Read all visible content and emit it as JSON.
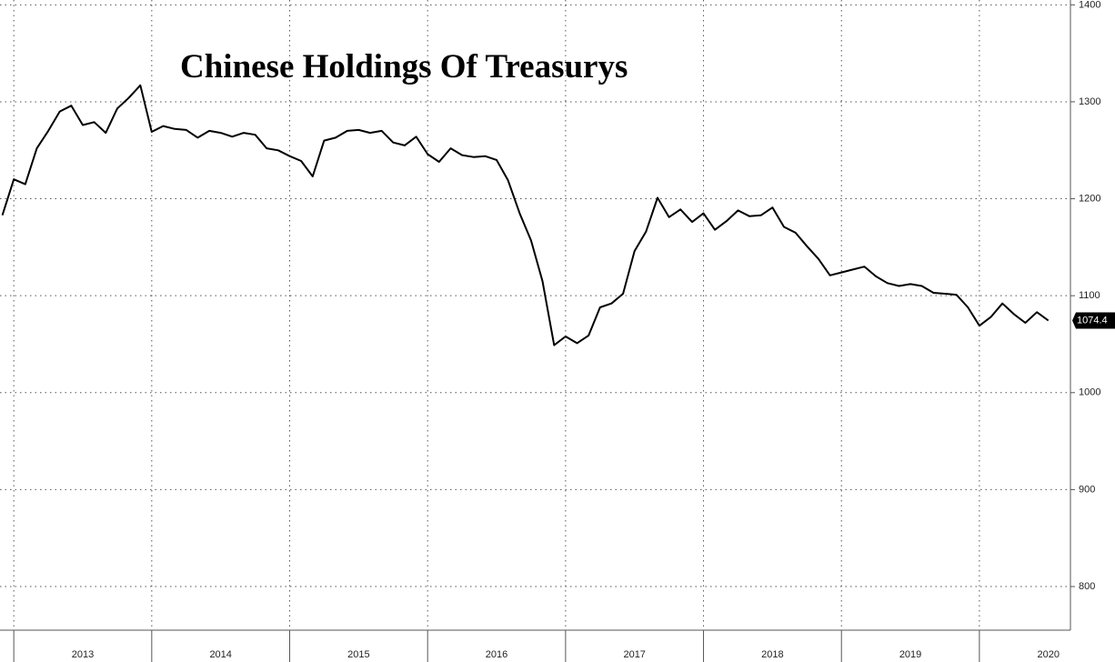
{
  "chart_data": {
    "type": "line",
    "title": "Chinese Holdings Of Treasurys",
    "x": [
      2012.917,
      2013,
      2013.083,
      2013.167,
      2013.25,
      2013.333,
      2013.417,
      2013.5,
      2013.583,
      2013.667,
      2013.75,
      2013.833,
      2013.917,
      2014,
      2014.083,
      2014.167,
      2014.25,
      2014.333,
      2014.417,
      2014.5,
      2014.583,
      2014.667,
      2014.75,
      2014.833,
      2014.917,
      2015,
      2015.083,
      2015.167,
      2015.25,
      2015.333,
      2015.417,
      2015.5,
      2015.583,
      2015.667,
      2015.75,
      2015.833,
      2015.917,
      2016,
      2016.083,
      2016.167,
      2016.25,
      2016.333,
      2016.417,
      2016.5,
      2016.583,
      2016.667,
      2016.75,
      2016.833,
      2016.917,
      2017,
      2017.083,
      2017.167,
      2017.25,
      2017.333,
      2017.417,
      2017.5,
      2017.583,
      2017.667,
      2017.75,
      2017.833,
      2017.917,
      2018,
      2018.083,
      2018.167,
      2018.25,
      2018.333,
      2018.417,
      2018.5,
      2018.583,
      2018.667,
      2018.75,
      2018.833,
      2018.917,
      2019,
      2019.083,
      2019.167,
      2019.25,
      2019.333,
      2019.417,
      2019.5,
      2019.583,
      2019.667,
      2019.75,
      2019.833,
      2019.917,
      2020,
      2020.083,
      2020.167,
      2020.25,
      2020.333,
      2020.417,
      2020.5
    ],
    "series": [
      {
        "color": "#000000",
        "values": [
          1183,
          1220,
          1215,
          1252,
          1270,
          1290,
          1296,
          1276,
          1279,
          1268,
          1293,
          1304,
          1317,
          1269,
          1275,
          1272,
          1271,
          1263,
          1270,
          1268,
          1264,
          1268,
          1266,
          1252,
          1250,
          1244,
          1239,
          1223,
          1260,
          1263,
          1270,
          1271,
          1268,
          1270,
          1258,
          1255,
          1264,
          1246,
          1238,
          1252,
          1245,
          1243,
          1244,
          1240,
          1219,
          1185,
          1157,
          1115,
          1049,
          1058,
          1051,
          1059,
          1088,
          1092,
          1102,
          1146,
          1166,
          1201,
          1181,
          1189,
          1176,
          1185,
          1168,
          1177,
          1188,
          1182,
          1183,
          1191,
          1171,
          1165,
          1151,
          1138,
          1121,
          1124,
          1127,
          1130,
          1120,
          1113,
          1110,
          1112,
          1110,
          1103,
          1102,
          1101,
          1088,
          1069,
          1078,
          1092,
          1081,
          1072,
          1083,
          1074.4
        ]
      }
    ],
    "xlim": [
      2012.9,
      2020.66
    ],
    "xticks": [
      {
        "value": 2013,
        "label": "2013"
      },
      {
        "value": 2014,
        "label": "2014"
      },
      {
        "value": 2015,
        "label": "2015"
      },
      {
        "value": 2016,
        "label": "2016"
      },
      {
        "value": 2017,
        "label": "2017"
      },
      {
        "value": 2018,
        "label": "2018"
      },
      {
        "value": 2019,
        "label": "2019"
      },
      {
        "value": 2020,
        "label": "2020"
      }
    ],
    "ylim": [
      755,
      1405
    ],
    "yticks": [
      800,
      900,
      1000,
      1100,
      1200,
      1300,
      1400
    ],
    "grid": true
  }
}
